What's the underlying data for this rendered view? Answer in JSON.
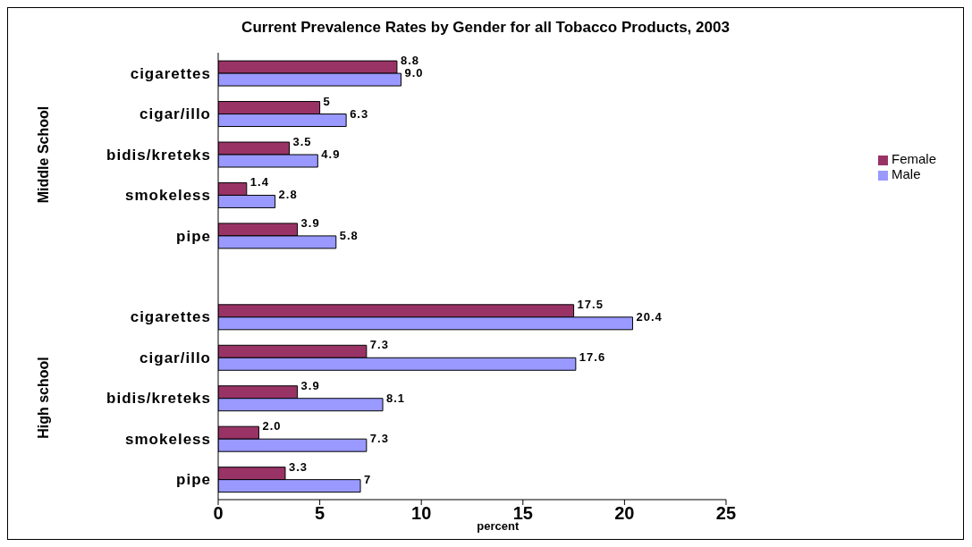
{
  "chart_data": {
    "type": "bar",
    "orientation": "horizontal",
    "title": "Current Prevalence Rates by Gender for all Tobacco Products, 2003",
    "xlabel": "percent",
    "categories": [
      "cigarettes",
      "cigar/illo",
      "bidis/kreteks",
      "smokeless",
      "pipe",
      null,
      "cigarettes",
      "cigar/illo",
      "bidis/kreteks",
      "smokeless",
      "pipe"
    ],
    "annotations": [
      "Middle School",
      "High school"
    ],
    "series": [
      {
        "name": "Female",
        "color": "#993366",
        "values": [
          8.8,
          5,
          3.5,
          1.4,
          3.9,
          null,
          17.5,
          7.3,
          3.9,
          2.0,
          3.3
        ],
        "value_labels": [
          "8.8",
          "5",
          "3.5",
          "1.4",
          "3.9",
          null,
          "17.5",
          "7.3",
          "3.9",
          "2.0",
          "3.3"
        ]
      },
      {
        "name": "Male",
        "color": "#9999ff",
        "values": [
          9.0,
          6.3,
          4.9,
          2.8,
          5.8,
          null,
          20.4,
          17.6,
          8.1,
          7.3,
          7
        ],
        "value_labels": [
          "9.0",
          "6.3",
          "4.9",
          "2.8",
          "5.8",
          null,
          "20.4",
          "17.6",
          "8.1",
          "7.3",
          "7"
        ]
      }
    ],
    "xlim": [
      0,
      25
    ],
    "xticks": [
      0,
      5,
      10,
      15,
      20,
      25
    ],
    "legend": "right"
  }
}
